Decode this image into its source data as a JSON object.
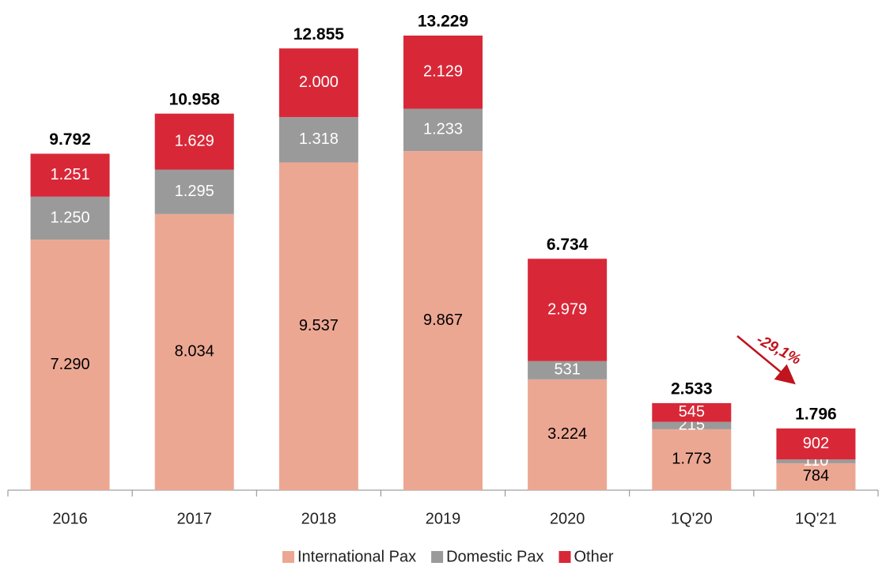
{
  "chart_data": {
    "type": "stacked_bar",
    "categories": [
      "2016",
      "2017",
      "2018",
      "2019",
      "2020",
      "1Q'20",
      "1Q'21"
    ],
    "series": [
      {
        "name": "International Pax",
        "color": "#eca793",
        "label_color": "#000000",
        "values": [
          7290,
          8034,
          9537,
          9867,
          3224,
          1773,
          784
        ],
        "value_labels": [
          "7.290",
          "8.034",
          "9.537",
          "9.867",
          "3.224",
          "1.773",
          "784"
        ]
      },
      {
        "name": "Domestic Pax",
        "color": "#9a9a9a",
        "label_color": "#ffffff",
        "values": [
          1250,
          1295,
          1318,
          1233,
          531,
          215,
          110
        ],
        "value_labels": [
          "1.250",
          "1.295",
          "1.318",
          "1.233",
          "531",
          "215",
          "110"
        ]
      },
      {
        "name": "Other",
        "color": "#d82838",
        "label_color": "#ffffff",
        "values": [
          1251,
          1629,
          2000,
          2129,
          2979,
          545,
          902
        ],
        "value_labels": [
          "1.251",
          "1.629",
          "2.000",
          "2.129",
          "2.979",
          "545",
          "902"
        ]
      }
    ],
    "totals": {
      "values": [
        9792,
        10958,
        12855,
        13229,
        6734,
        2533,
        1796
      ],
      "value_labels": [
        "9.792",
        "10.958",
        "12.855",
        "13.229",
        "6.734",
        "2.533",
        "1.796"
      ]
    },
    "annotation": "-29,1%",
    "legend": "bottom"
  }
}
